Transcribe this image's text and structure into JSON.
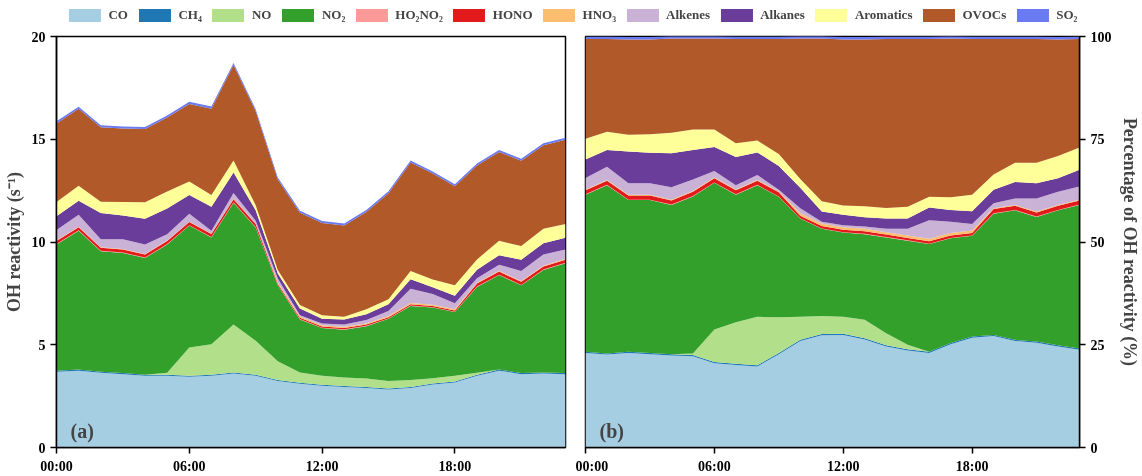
{
  "chart_data": [
    {
      "type": "area",
      "stacked": true,
      "legend": "top",
      "ylabel": "OH reactivity (s⁻¹)",
      "annotations": [
        "(a)"
      ],
      "x": [
        0,
        1,
        2,
        3,
        4,
        5,
        6,
        7,
        8,
        9,
        10,
        11,
        12,
        13,
        14,
        15,
        16,
        17,
        18,
        19,
        20,
        21,
        22,
        23
      ],
      "xlim": [
        0,
        23
      ],
      "xticks": [
        {
          "value": 0,
          "label": "00:00"
        },
        {
          "value": 6,
          "label": "06:00"
        },
        {
          "value": 12,
          "label": "12:00"
        },
        {
          "value": 18,
          "label": "18:00"
        }
      ],
      "ylim": [
        0,
        20
      ],
      "yticks": [
        0,
        5,
        10,
        15,
        20
      ],
      "series": [
        {
          "name": "CO",
          "color": "#a6cee3",
          "values": [
            3.69,
            3.74,
            3.64,
            3.57,
            3.49,
            3.49,
            3.44,
            3.49,
            3.6,
            3.49,
            3.24,
            3.1,
            3.0,
            2.94,
            2.9,
            2.82,
            2.9,
            3.07,
            3.16,
            3.49,
            3.74,
            3.57,
            3.6,
            3.57
          ]
        },
        {
          "name": "CH₄",
          "color": "#1f78b4",
          "values": [
            0.05,
            0.05,
            0.05,
            0.05,
            0.05,
            0.05,
            0.05,
            0.05,
            0.05,
            0.05,
            0.05,
            0.05,
            0.05,
            0.05,
            0.05,
            0.05,
            0.05,
            0.05,
            0.05,
            0.05,
            0.05,
            0.05,
            0.05,
            0.05
          ]
        },
        {
          "name": "NO",
          "color": "#b2df8a",
          "values": [
            0,
            0,
            0,
            0,
            0,
            0.1,
            1.38,
            1.49,
            2.33,
            1.66,
            0.91,
            0.5,
            0.44,
            0.42,
            0.41,
            0.37,
            0.34,
            0.25,
            0.28,
            0.1,
            0,
            0,
            0,
            0
          ]
        },
        {
          "name": "NO₂",
          "color": "#33a02c",
          "values": [
            6.14,
            6.76,
            5.86,
            5.85,
            5.68,
            6.24,
            5.93,
            5.19,
            5.93,
            5.51,
            3.69,
            2.58,
            2.32,
            2.32,
            2.54,
            3.02,
            3.6,
            3.44,
            3.1,
            4.17,
            4.6,
            4.27,
            4.99,
            5.35
          ]
        },
        {
          "name": "HO₂NO₂",
          "color": "#fb9a99",
          "values": [
            0.02,
            0.02,
            0.02,
            0.02,
            0.02,
            0.02,
            0.02,
            0.02,
            0.02,
            0.02,
            0.02,
            0.02,
            0.02,
            0.02,
            0.02,
            0.02,
            0.02,
            0.02,
            0.02,
            0.02,
            0.02,
            0.02,
            0.02,
            0.02
          ]
        },
        {
          "name": "HONO",
          "color": "#e31a1c",
          "values": [
            0.15,
            0.15,
            0.15,
            0.15,
            0.15,
            0.15,
            0.15,
            0.15,
            0.15,
            0.15,
            0.06,
            0.06,
            0.06,
            0.06,
            0.06,
            0.06,
            0.06,
            0.06,
            0.06,
            0.15,
            0.15,
            0.15,
            0.15,
            0.15
          ]
        },
        {
          "name": "HNO₃",
          "color": "#fdbf6f",
          "values": [
            0.02,
            0.02,
            0.02,
            0.02,
            0.02,
            0.02,
            0.02,
            0.02,
            0.02,
            0.02,
            0.06,
            0.06,
            0.06,
            0.06,
            0.06,
            0.06,
            0.06,
            0.06,
            0.06,
            0.04,
            0.04,
            0.04,
            0.04,
            0.04
          ]
        },
        {
          "name": "Alkenes",
          "color": "#cab2d6",
          "values": [
            0.52,
            0.59,
            0.39,
            0.47,
            0.47,
            0.31,
            0.39,
            0.14,
            0.28,
            0.14,
            0.19,
            0.06,
            0.08,
            0.11,
            0.16,
            0.24,
            0.69,
            0.52,
            0.29,
            0.21,
            0.29,
            0.49,
            0.54,
            0.45
          ]
        },
        {
          "name": "Alkanes",
          "color": "#6a3d9a",
          "values": [
            0.66,
            0.68,
            1.28,
            1.16,
            1.25,
            1.25,
            0.91,
            1.16,
            1.0,
            0.5,
            0.25,
            0.33,
            0.23,
            0.25,
            0.28,
            0.33,
            0.47,
            0.33,
            0.37,
            0.42,
            0.47,
            0.55,
            0.55,
            0.58
          ]
        },
        {
          "name": "Aromatics",
          "color": "#ffff99",
          "values": [
            0.7,
            0.73,
            0.55,
            0.66,
            0.8,
            0.83,
            0.66,
            0.58,
            0.58,
            0.25,
            0.17,
            0.17,
            0.17,
            0.13,
            0.25,
            0.25,
            0.4,
            0.38,
            0.5,
            0.5,
            0.7,
            0.66,
            0.7,
            0.66
          ]
        },
        {
          "name": "OVOCs",
          "color": "#b15928",
          "values": [
            3.82,
            3.74,
            3.62,
            3.57,
            3.57,
            3.6,
            3.77,
            4.2,
            4.65,
            4.57,
            4.4,
            4.49,
            4.49,
            4.44,
            4.73,
            5.15,
            5.28,
            5.15,
            4.82,
            4.57,
            4.32,
            4.15,
            4.07,
            4.1
          ]
        },
        {
          "name": "SO₂",
          "color": "#6a7af0",
          "values": [
            0.1,
            0.1,
            0.1,
            0.1,
            0.1,
            0.1,
            0.1,
            0.1,
            0.1,
            0.1,
            0.1,
            0.1,
            0.1,
            0.1,
            0.1,
            0.1,
            0.1,
            0.1,
            0.1,
            0.1,
            0.1,
            0.1,
            0.1,
            0.1
          ]
        }
      ]
    },
    {
      "type": "area",
      "stacked": true,
      "y2label": "Percentage of OH reactivity (%)",
      "annotations": [
        "(b)"
      ],
      "x": [
        0,
        1,
        2,
        3,
        4,
        5,
        6,
        7,
        8,
        9,
        10,
        11,
        12,
        13,
        14,
        15,
        16,
        17,
        18,
        19,
        20,
        21,
        22,
        23
      ],
      "xlim": [
        0,
        23
      ],
      "xticks": [
        {
          "value": 0,
          "label": "00:00"
        },
        {
          "value": 6,
          "label": "06:00"
        },
        {
          "value": 12,
          "label": "12:00"
        },
        {
          "value": 18,
          "label": "18:00"
        }
      ],
      "y2lim": [
        0,
        100
      ],
      "y2ticks": [
        0,
        25,
        50,
        75,
        100
      ],
      "series": [
        {
          "color": "#a6cee3",
          "axis": "y2",
          "values": [
            23.0,
            22.6,
            23.0,
            22.7,
            22.4,
            22.2,
            20.5,
            20.1,
            19.7,
            22.7,
            25.9,
            27.3,
            27.4,
            26.3,
            24.6,
            23.6,
            23.0,
            25.1,
            26.7,
            27.1,
            25.9,
            25.5,
            24.6,
            23.8
          ]
        },
        {
          "color": "#1f78b4",
          "axis": "y2",
          "values": [
            0.3,
            0.3,
            0.3,
            0.3,
            0.3,
            0.3,
            0.3,
            0.3,
            0.3,
            0.3,
            0.3,
            0.3,
            0.3,
            0.3,
            0.3,
            0.3,
            0.3,
            0.3,
            0.3,
            0.3,
            0.3,
            0.3,
            0.3,
            0.3
          ]
        },
        {
          "color": "#b2df8a",
          "axis": "y2",
          "values": [
            0,
            0,
            0,
            0,
            0,
            0.4,
            7.9,
            10.1,
            11.8,
            8.7,
            5.6,
            4.4,
            4.1,
            4.5,
            2.9,
            1.1,
            0,
            0,
            0,
            0,
            0,
            0,
            0,
            0
          ]
        },
        {
          "color": "#33a02c",
          "axis": "y2",
          "values": [
            38.2,
            40.9,
            36.9,
            37.2,
            36.3,
            38.2,
            35.7,
            31.0,
            32.0,
            29.3,
            23.9,
            21.2,
            20.5,
            20.8,
            23.3,
            25.3,
            26.2,
            25.5,
            24.5,
            29.5,
            31.5,
            30.3,
            32.8,
            34.9
          ]
        },
        {
          "color": "#fb9a99",
          "axis": "y2",
          "values": [
            0.1,
            0.1,
            0.1,
            0.1,
            0.1,
            0.1,
            0.1,
            0.1,
            0.1,
            0.1,
            0.1,
            0.1,
            0.1,
            0.1,
            0.1,
            0.1,
            0.1,
            0.1,
            0.1,
            0.1,
            0.1,
            0.1,
            0.1,
            0.1
          ]
        },
        {
          "color": "#e31a1c",
          "axis": "y2",
          "values": [
            1.0,
            1.0,
            1.0,
            1.0,
            1.0,
            1.0,
            1.0,
            1.0,
            1.0,
            1.0,
            0.6,
            0.6,
            0.6,
            0.6,
            0.6,
            0.6,
            0.6,
            0.6,
            0.6,
            1.0,
            1.0,
            1.0,
            1.0,
            1.0
          ]
        },
        {
          "color": "#fdbf6f",
          "axis": "y2",
          "values": [
            0.2,
            0.2,
            0.2,
            0.2,
            0.2,
            0.2,
            0.2,
            0.2,
            0.2,
            0.2,
            0.6,
            0.6,
            0.6,
            0.6,
            0.6,
            0.6,
            0.6,
            0.6,
            0.6,
            0.2,
            0.2,
            0.2,
            0.2,
            0.2
          ]
        },
        {
          "color": "#cab2d6",
          "axis": "y2",
          "values": [
            2.8,
            3.2,
            2.8,
            2.8,
            3.0,
            2.8,
            1.6,
            1.0,
            1.2,
            0.4,
            1.2,
            0.4,
            0.5,
            0.6,
            0.8,
            1.6,
            4.5,
            2.7,
            1.6,
            1.2,
            1.6,
            3.2,
            3.2,
            3.2
          ]
        },
        {
          "color": "#6a3d9a",
          "axis": "y2",
          "values": [
            4.5,
            4.1,
            7.7,
            7.4,
            8.3,
            7.2,
            5.8,
            6.9,
            5.5,
            5.8,
            5.0,
            2.5,
            2.5,
            2.2,
            2.5,
            2.5,
            3.1,
            2.9,
            3.1,
            3.3,
            4.0,
            3.7,
            3.3,
            4.1
          ]
        },
        {
          "color": "#ffff99",
          "axis": "y2",
          "values": [
            5.0,
            4.4,
            4.1,
            4.5,
            5.0,
            5.0,
            4.3,
            3.3,
            2.9,
            2.9,
            2.1,
            2.5,
            2.3,
            2.7,
            2.6,
            2.9,
            2.6,
            3.1,
            4.0,
            3.7,
            4.7,
            5.0,
            5.4,
            5.4
          ]
        },
        {
          "color": "#b15928",
          "axis": "y2",
          "values": [
            24.3,
            22.6,
            23.2,
            23.1,
            22.9,
            22.1,
            22.1,
            25.4,
            24.7,
            28.0,
            34.2,
            39.6,
            40.4,
            40.6,
            41.1,
            40.8,
            38.4,
            38.6,
            37.9,
            33.0,
            30.1,
            30.1,
            28.4,
            26.4
          ]
        },
        {
          "color": "#6a7af0",
          "axis": "y2",
          "values": [
            0.6,
            0.6,
            0.6,
            0.6,
            0.6,
            0.6,
            0.6,
            0.6,
            0.6,
            0.6,
            0.6,
            0.6,
            0.6,
            0.6,
            0.6,
            0.6,
            0.6,
            0.6,
            0.6,
            0.6,
            0.6,
            0.6,
            0.6,
            0.6
          ]
        }
      ]
    }
  ]
}
